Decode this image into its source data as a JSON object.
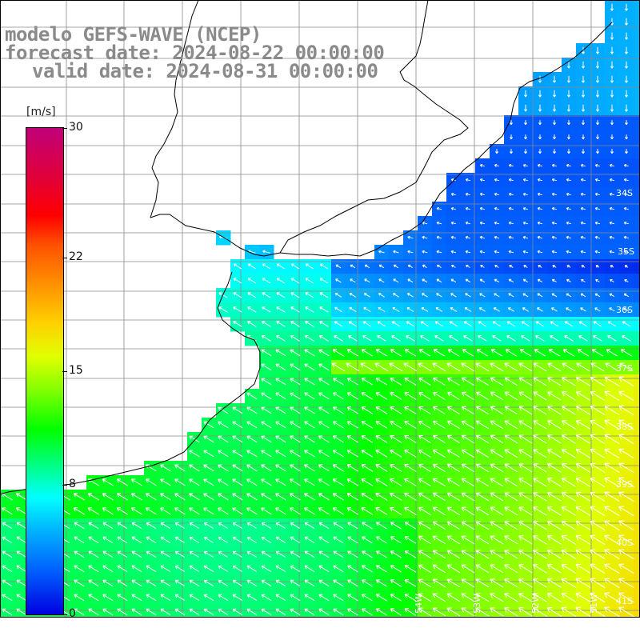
{
  "title": {
    "line1": "modelo GEFS-WAVE (NCEP)",
    "line2": "forecast date: 2024-08-22 00:00:00",
    "line3": "valid date: 2024-08-31 00:00:00"
  },
  "colorbar": {
    "unit": "[m/s]",
    "ticks": [
      "30",
      "22",
      "15",
      "8",
      "0"
    ],
    "tick_values": [
      30,
      22,
      15,
      8,
      0
    ],
    "vmin": 0,
    "vmax": 30
  },
  "map": {
    "lat_labels": [
      "34S",
      "35S",
      "36S",
      "37S",
      "38S",
      "39S",
      "40S",
      "41S"
    ],
    "lon_labels": [
      "54W",
      "53W",
      "52W",
      "51W"
    ],
    "colors": {
      "land": "#ffffff",
      "coast": "#000000",
      "grid": "#8a8a8a",
      "arrows": "#ffffff"
    }
  }
}
